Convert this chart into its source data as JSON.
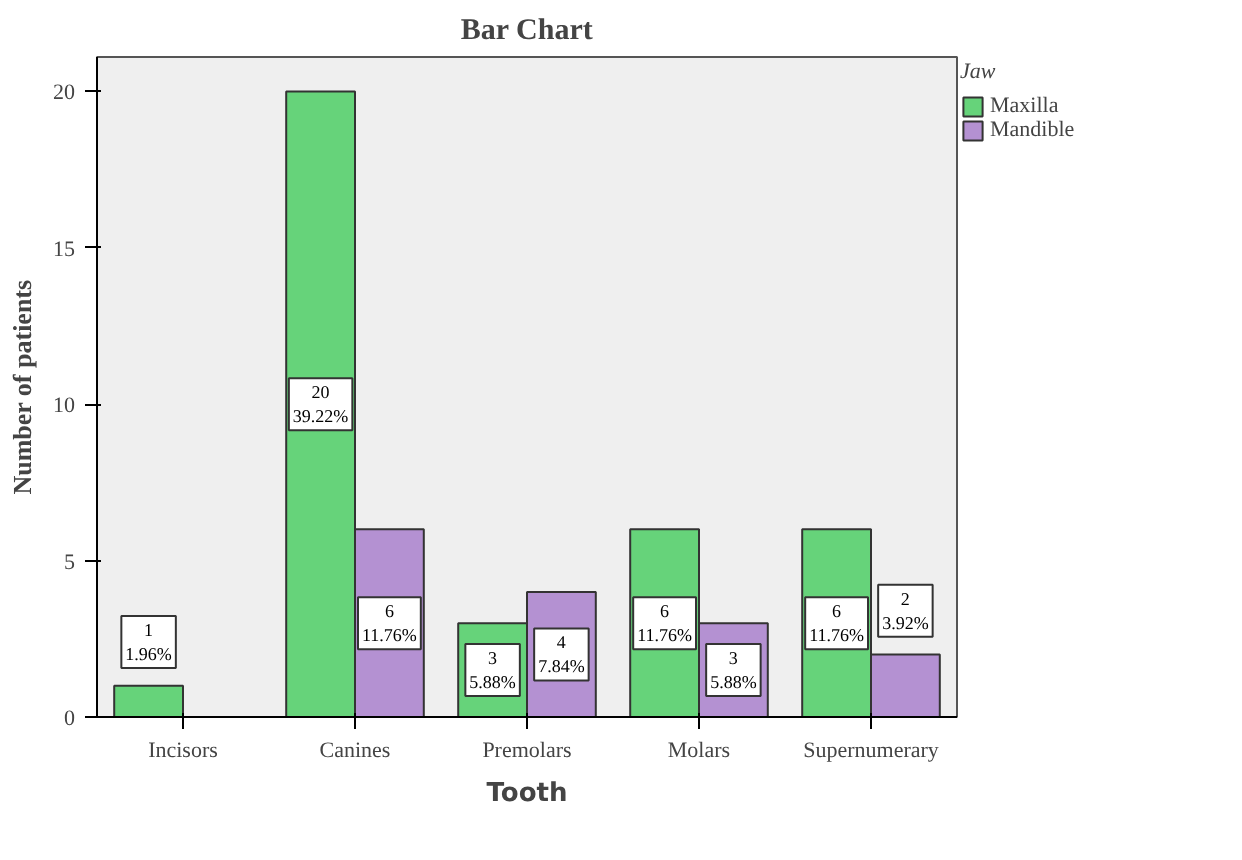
{
  "chart_data": {
    "type": "bar",
    "title": "Bar Chart",
    "xlabel": "Tooth",
    "ylabel": "Number of patients",
    "legend_title": "Jaw",
    "legend": "right",
    "grid": false,
    "categories": [
      "Incisors",
      "Canines",
      "Premolars",
      "Molars",
      "Supernumerary"
    ],
    "ylim": [
      0,
      21.1
    ],
    "yticks": [
      0,
      5,
      10,
      15,
      20
    ],
    "series": [
      {
        "name": "Maxilla",
        "color": "#66d37a",
        "values": [
          1,
          20,
          3,
          6,
          6
        ],
        "value_labels": [
          "1\n1.96%",
          "20\n39.22%",
          "3\n5.88%",
          "6\n11.76%",
          "6\n11.76%"
        ]
      },
      {
        "name": "Mandible",
        "color": "#b491d2",
        "values": [
          null,
          6,
          4,
          3,
          2
        ],
        "value_labels": [
          null,
          "6\n11.76%",
          "4\n7.84%",
          "3\n5.88%",
          "2\n3.92%"
        ]
      }
    ]
  }
}
